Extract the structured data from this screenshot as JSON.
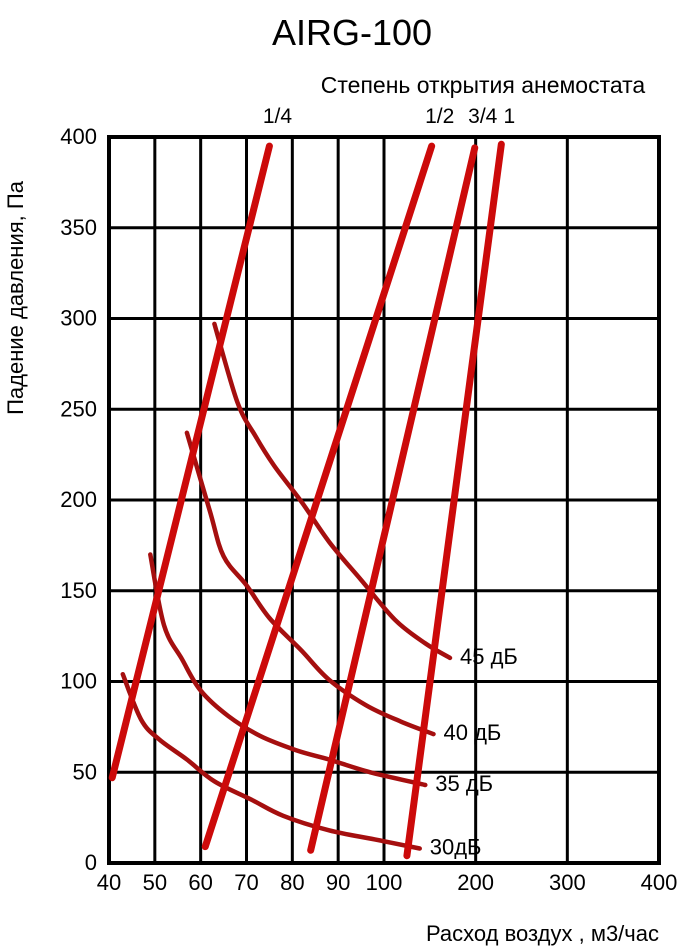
{
  "page": {
    "title": "AIRG-100",
    "subtitle": "Степень открытия анемостата"
  },
  "chart_data": {
    "type": "line",
    "title": "AIRG-100",
    "subtitle": "Степень открытия анемостата",
    "xlabel": "Расход воздух , м3/час",
    "ylabel": "Падение давления, Па",
    "xlim": [
      40,
      400
    ],
    "ylim": [
      0,
      400
    ],
    "grid": true,
    "x_scale_note": "pseudo-log: ticks 40-100 equally spaced (1/12 of width each), ticks 100-400 spaced 1/6 of width each",
    "x_ticks": [
      40,
      50,
      60,
      70,
      80,
      90,
      100,
      200,
      300,
      400
    ],
    "y_ticks": [
      0,
      50,
      100,
      150,
      200,
      250,
      300,
      350,
      400
    ],
    "colors": {
      "opening_line": "#cc0a0a",
      "noise_curve": "#a50f0f",
      "grid": "#000000",
      "text": "#000000"
    },
    "opening_series": [
      {
        "name": "1/4",
        "points": [
          [
            40.7,
            47
          ],
          [
            75,
            395
          ]
        ]
      },
      {
        "name": "1/2",
        "points": [
          [
            61,
            9
          ],
          [
            152,
            395
          ]
        ]
      },
      {
        "name": "3/4",
        "points": [
          [
            84,
            7
          ],
          [
            199,
            394
          ]
        ]
      },
      {
        "name": "1",
        "points": [
          [
            125,
            4
          ],
          [
            228,
            396
          ]
        ]
      }
    ],
    "noise_series": [
      {
        "name": "45 дБ",
        "points": [
          [
            63,
            297
          ],
          [
            68,
            254
          ],
          [
            72,
            235
          ],
          [
            76,
            219
          ],
          [
            82,
            199
          ],
          [
            88,
            177
          ],
          [
            95,
            156
          ],
          [
            112,
            134
          ],
          [
            145,
            121
          ],
          [
            172,
            113
          ]
        ]
      },
      {
        "name": "40 дБ",
        "points": [
          [
            57,
            237
          ],
          [
            62,
            194
          ],
          [
            65,
            169
          ],
          [
            70,
            153
          ],
          [
            75,
            135
          ],
          [
            82,
            117
          ],
          [
            88,
            101
          ],
          [
            96,
            87
          ],
          [
            118,
            78
          ],
          [
            154,
            71
          ]
        ]
      },
      {
        "name": "35 дБ",
        "points": [
          [
            49,
            170
          ],
          [
            52,
            131
          ],
          [
            56,
            112
          ],
          [
            60,
            95
          ],
          [
            66,
            81
          ],
          [
            73,
            70
          ],
          [
            81,
            62
          ],
          [
            88,
            57
          ],
          [
            97,
            50
          ],
          [
            145,
            43
          ]
        ]
      },
      {
        "name": "30дБ",
        "points": [
          [
            43,
            104
          ],
          [
            47,
            79
          ],
          [
            51,
            68
          ],
          [
            57,
            57
          ],
          [
            63,
            45
          ],
          [
            71,
            35
          ],
          [
            78,
            26
          ],
          [
            88,
            18
          ],
          [
            98,
            13
          ],
          [
            139,
            8
          ]
        ]
      }
    ]
  }
}
